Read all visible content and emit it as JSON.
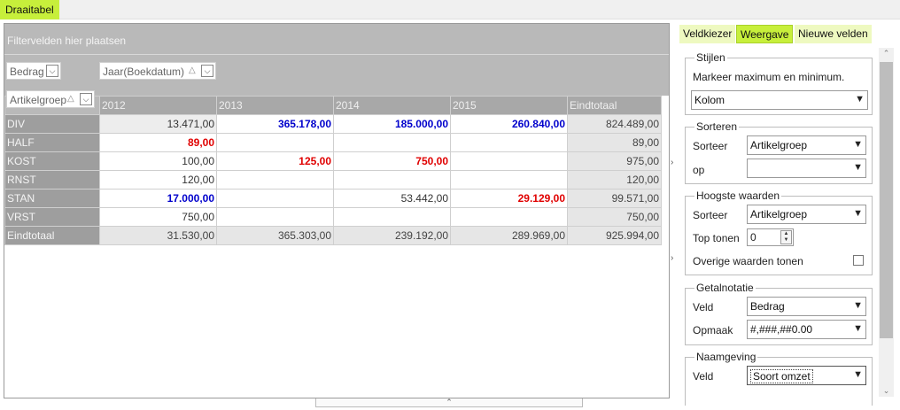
{
  "app": {
    "tab_label": "Draaitabel"
  },
  "pivot": {
    "filter_area_label": "Filtervelden hier plaatsen",
    "data_field": "Bedrag",
    "column_field": "Jaar(Boekdatum)",
    "row_field": "Artikelgroep",
    "columns": [
      "2012",
      "2013",
      "2014",
      "2015",
      "Eindtotaal"
    ],
    "rows": [
      {
        "label": "DIV",
        "cells": [
          "13.471,00",
          "365.178,00",
          "185.000,00",
          "260.840,00",
          "824.489,00"
        ]
      },
      {
        "label": "HALF",
        "cells": [
          "89,00",
          "",
          "",
          "",
          "89,00"
        ]
      },
      {
        "label": "KOST",
        "cells": [
          "100,00",
          "125,00",
          "750,00",
          "",
          "975,00"
        ]
      },
      {
        "label": "RNST",
        "cells": [
          "120,00",
          "",
          "",
          "",
          "120,00"
        ]
      },
      {
        "label": "STAN",
        "cells": [
          "17.000,00",
          "",
          "53.442,00",
          "29.129,00",
          "99.571,00"
        ]
      },
      {
        "label": "VRST",
        "cells": [
          "750,00",
          "",
          "",
          "",
          "750,00"
        ]
      },
      {
        "label": "Eindtotaal",
        "cells": [
          "31.530,00",
          "365.303,00",
          "239.192,00",
          "289.969,00",
          "925.994,00"
        ]
      }
    ],
    "colors": {
      "max": "#0000cc",
      "min": "#e00000"
    }
  },
  "panel": {
    "tabs": [
      "Veldkiezer",
      "Weergave",
      "Nieuwe velden"
    ],
    "active_tab": "Weergave",
    "stijlen": {
      "title": "Stijlen",
      "description": "Markeer maximum en minimum.",
      "value": "Kolom"
    },
    "sorteren": {
      "title": "Sorteren",
      "sorteer_label": "Sorteer",
      "sorteer_value": "Artikelgroep",
      "op_label": "op",
      "op_value": ""
    },
    "hoogste": {
      "title": "Hoogste waarden",
      "sorteer_label": "Sorteer",
      "sorteer_value": "Artikelgroep",
      "top_label": "Top tonen",
      "top_value": "0",
      "overige_label": "Overige waarden tonen",
      "overige_checked": false
    },
    "getalnotatie": {
      "title": "Getalnotatie",
      "veld_label": "Veld",
      "veld_value": "Bedrag",
      "opmaak_label": "Opmaak",
      "opmaak_value": "#,###,##0.00"
    },
    "naamgeving": {
      "title": "Naamgeving",
      "veld_label": "Veld",
      "veld_value": "Soort omzet"
    }
  },
  "icons": {
    "dropdown": "chevron-down-icon",
    "sort": "sort-triangle-icon",
    "collapse": "chevron-right-icon"
  }
}
